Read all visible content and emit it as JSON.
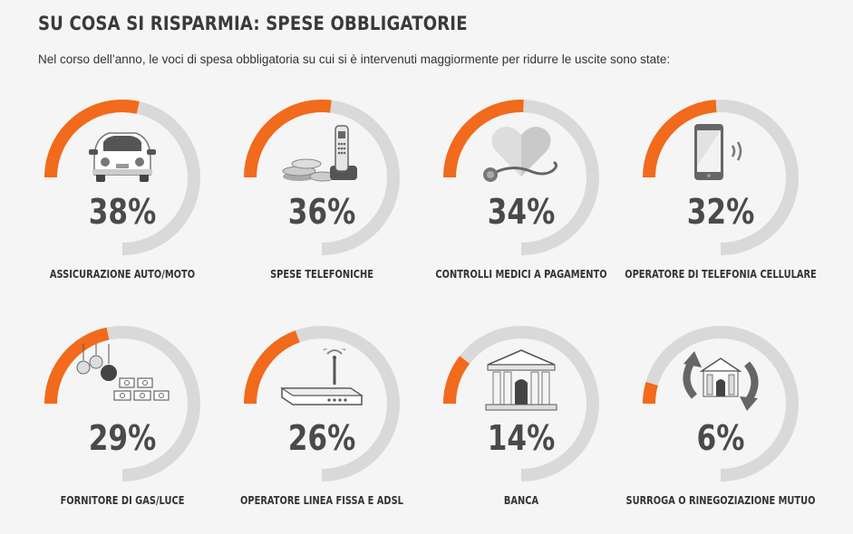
{
  "header": {
    "title": "SU COSA SI RISPARMIA: SPESE OBBLIGATORIE",
    "subtitle": "Nel corso dell’anno, le voci di spesa obbligatoria su cui si è intervenuti maggiormente per ridurre le uscite sono state:"
  },
  "colors": {
    "accent": "#f26a1b",
    "track": "#d9d9d9",
    "text": "#4a4a4a"
  },
  "chart_data": {
    "type": "donut-progress",
    "unit": "%",
    "max": 100,
    "items": [
      {
        "label": "ASSICURAZIONE AUTO/MOTO",
        "value": 38,
        "value_label": "38%",
        "icon": "car-icon"
      },
      {
        "label": "SPESE TELEFONICHE",
        "value": 36,
        "value_label": "36%",
        "icon": "phone-coins-icon"
      },
      {
        "label": "CONTROLLI MEDICI A PAGAMENTO",
        "value": 34,
        "value_label": "34%",
        "icon": "stethoscope-heart-icon"
      },
      {
        "label": "OPERATORE DI TELEFONIA CELLULARE",
        "value": 32,
        "value_label": "32%",
        "icon": "smartphone-icon"
      },
      {
        "label": "FORNITORE DI GAS/LUCE",
        "value": 29,
        "value_label": "29%",
        "icon": "bulbs-stove-icon"
      },
      {
        "label": "OPERATORE LINEA FISSA E ADSL",
        "value": 26,
        "value_label": "26%",
        "icon": "router-icon"
      },
      {
        "label": "BANCA",
        "value": 14,
        "value_label": "14%",
        "icon": "bank-icon"
      },
      {
        "label": "SURROGA O RINEGOZIAZIONE MUTUO",
        "value": 6,
        "value_label": "6%",
        "icon": "house-refresh-icon"
      }
    ]
  }
}
